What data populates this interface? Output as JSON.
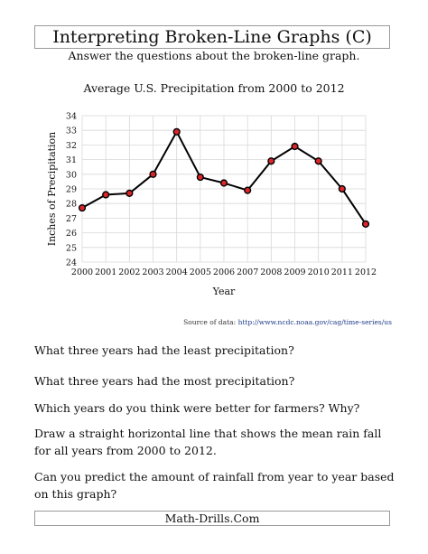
{
  "header": {
    "title": "Interpreting Broken-Line Graphs (C)",
    "subtitle": "Answer the questions about the broken-line graph."
  },
  "chart_data": {
    "type": "line",
    "title": "Average U.S. Precipitation from 2000 to 2012",
    "xlabel": "Year",
    "ylabel": "Inches of Precipitation",
    "categories": [
      "2000",
      "2001",
      "2002",
      "2003",
      "2004",
      "2005",
      "2006",
      "2007",
      "2008",
      "2009",
      "2010",
      "2011",
      "2012"
    ],
    "values": [
      27.7,
      28.6,
      28.7,
      30.0,
      32.9,
      29.8,
      29.4,
      28.9,
      30.9,
      31.9,
      30.9,
      29.0,
      26.6
    ],
    "ylim": [
      24,
      34
    ],
    "yticks": [
      24,
      25,
      26,
      27,
      28,
      29,
      30,
      31,
      32,
      33,
      34
    ],
    "grid": true,
    "colors": {
      "line": "#000000",
      "marker": "#d9262b",
      "grid": "#d8d8d8"
    }
  },
  "source": {
    "label": "Source of data:",
    "url": "http://www.ncdc.noaa.gov/cag/time-series/us"
  },
  "questions": [
    "What three years had the least precipitation?",
    "What three years had the most precipitation?",
    "Which years do you think were better for farmers? Why?",
    "Draw a straight horizontal line that shows the mean rain fall for all years from 2000 to 2012.",
    "Can you predict the amount of rainfall from year to year based on this graph?"
  ],
  "footer": {
    "text": "Math-Drills.Com"
  }
}
